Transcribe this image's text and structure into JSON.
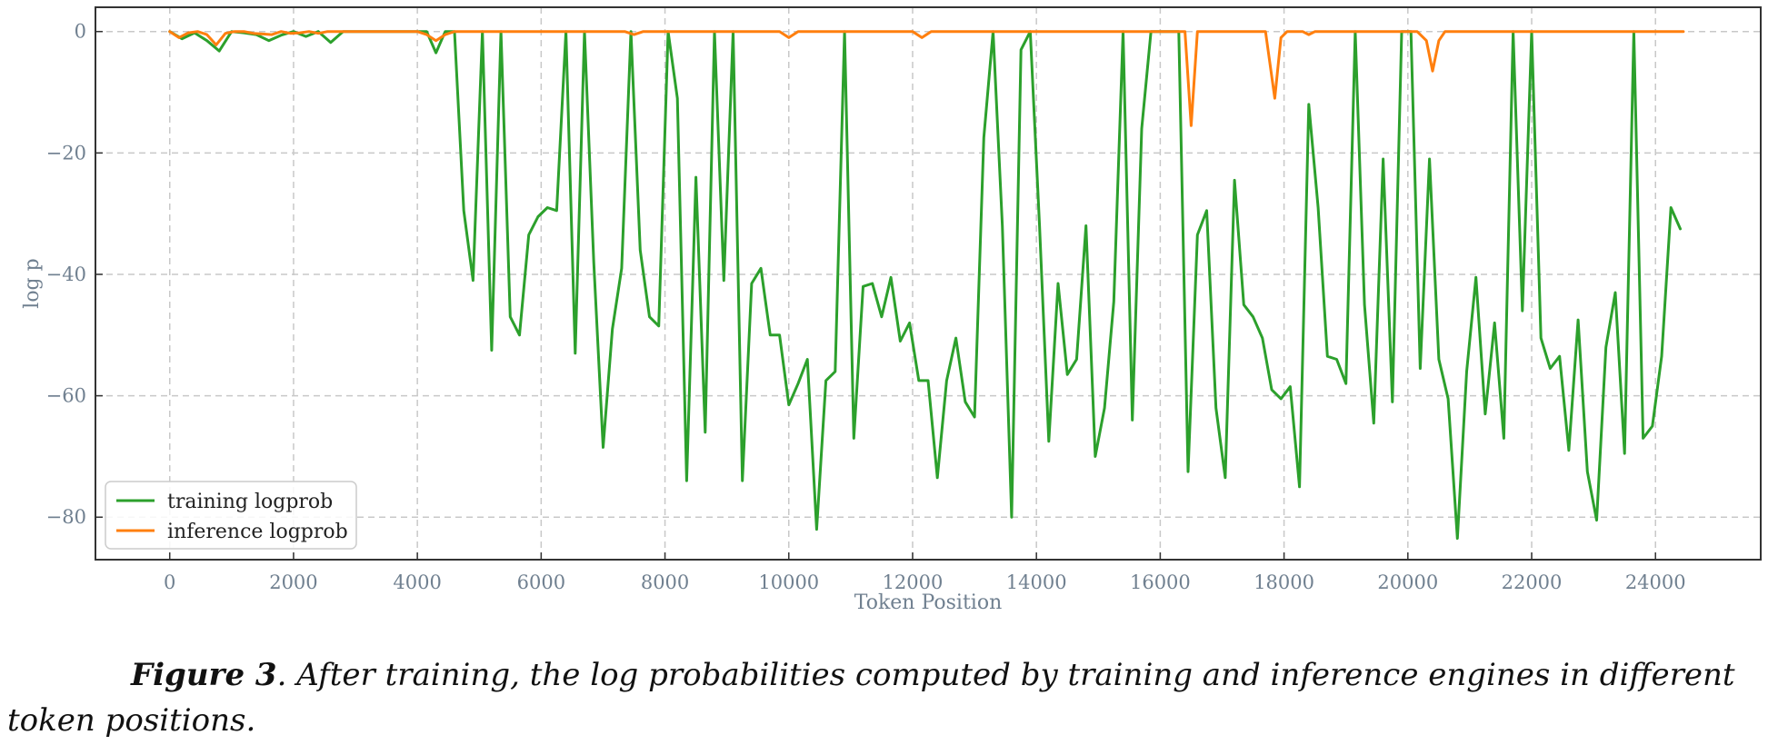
{
  "caption": {
    "figure_label": "Figure 3",
    "text": ". After training, the log probabilities computed by training and inference engines in different token positions."
  },
  "chart_data": {
    "type": "line",
    "xlabel": "Token Position",
    "ylabel": "log p",
    "xlim": [
      -1200,
      25700
    ],
    "ylim": [
      -87,
      4
    ],
    "xticks": [
      0,
      2000,
      4000,
      6000,
      8000,
      10000,
      12000,
      14000,
      16000,
      18000,
      20000,
      22000,
      24000
    ],
    "yticks": [
      0,
      -20,
      -40,
      -60,
      -80
    ],
    "grid": true,
    "legend_position": "lower-left",
    "series": [
      {
        "name": "training logprob",
        "color": "#2ca02c",
        "x": [
          0,
          200,
          400,
          600,
          800,
          1000,
          1200,
          1400,
          1600,
          1800,
          2000,
          2200,
          2400,
          2600,
          2800,
          3000,
          3200,
          3400,
          3600,
          3800,
          4000,
          4150,
          4300,
          4450,
          4600,
          4750,
          4900,
          5050,
          5200,
          5350,
          5500,
          5650,
          5800,
          5950,
          6100,
          6250,
          6400,
          6550,
          6700,
          6850,
          7000,
          7150,
          7300,
          7450,
          7600,
          7750,
          7900,
          8050,
          8200,
          8350,
          8500,
          8650,
          8800,
          8950,
          9100,
          9250,
          9400,
          9550,
          9700,
          9850,
          10000,
          10150,
          10300,
          10450,
          10600,
          10750,
          10900,
          11050,
          11200,
          11350,
          11500,
          11650,
          11800,
          11950,
          12100,
          12250,
          12400,
          12550,
          12700,
          12850,
          13000,
          13150,
          13300,
          13450,
          13600,
          13750,
          13900,
          14050,
          14200,
          14350,
          14500,
          14650,
          14800,
          14950,
          15100,
          15250,
          15400,
          15550,
          15700,
          15850,
          16000,
          16150,
          16300,
          16450,
          16600,
          16750,
          16900,
          17050,
          17200,
          17350,
          17500,
          17650,
          17800,
          17950,
          18100,
          18250,
          18400,
          18550,
          18700,
          18850,
          19000,
          19150,
          19300,
          19450,
          19600,
          19750,
          19900,
          20050,
          20200,
          20350,
          20500,
          20650,
          20800,
          20950,
          21100,
          21250,
          21400,
          21550,
          21700,
          21850,
          22000,
          22150,
          22300,
          22450,
          22600,
          22750,
          22900,
          23050,
          23200,
          23350,
          23500,
          23650,
          23800,
          23950,
          24100,
          24250,
          24400
        ],
        "y": [
          0,
          -1.2,
          -0.2,
          -1.5,
          -3.2,
          0,
          -0.2,
          -0.5,
          -1.5,
          -0.6,
          0,
          -0.8,
          0,
          -1.8,
          0,
          0,
          0,
          0,
          0,
          0,
          0,
          0,
          -3.5,
          0,
          0,
          -29.5,
          -41,
          0,
          -52.5,
          0,
          -47,
          -50,
          -33.5,
          -30.5,
          -29,
          -29.5,
          0,
          -53,
          0,
          -38,
          -68.5,
          -49,
          -39,
          0,
          -36,
          -47,
          -48.5,
          0,
          -11,
          -74,
          -24,
          -66,
          0,
          -41,
          0,
          -74,
          -41.5,
          -39,
          -50,
          -50,
          -61.5,
          -58,
          -54,
          -82,
          -57.5,
          -56,
          0,
          -67,
          -42,
          -41.5,
          -47,
          -40.5,
          -51,
          -48,
          -57.5,
          -57.5,
          -73.5,
          -57.5,
          -50.5,
          -61,
          -63.5,
          -17.5,
          0,
          -32,
          -80,
          -3,
          0,
          -32,
          -67.5,
          -41.5,
          -56.5,
          -54,
          -32,
          -70,
          -62,
          -44.5,
          0,
          -64,
          -16,
          0,
          0,
          0,
          0,
          -72.5,
          -33.5,
          -29.5,
          -62,
          -73.5,
          -24.5,
          -45,
          -47,
          -50.5,
          -59,
          -60.5,
          -58.5,
          -75,
          -12,
          -29,
          -53.5,
          -54,
          -58,
          0,
          -45,
          -64.5,
          -21,
          -61,
          0,
          0,
          -55.5,
          -21,
          -54,
          -60.5,
          -83.5,
          -56,
          -40.5,
          -63,
          -48,
          -67,
          0,
          -46,
          0,
          -50.5,
          -55.5,
          -53.5,
          -69,
          -47.5,
          -72.5,
          -80.5,
          -52,
          -43,
          -69.5,
          0,
          -67,
          -65,
          -53.5,
          -29,
          -32.5
        ]
      },
      {
        "name": "inference logprob",
        "color": "#ff7f0e",
        "x": [
          0,
          150,
          300,
          450,
          600,
          750,
          900,
          1050,
          1200,
          1350,
          1500,
          1650,
          1800,
          1950,
          2100,
          2250,
          2400,
          2550,
          2700,
          4000,
          4150,
          4300,
          4450,
          4600,
          7350,
          7500,
          7650,
          9850,
          10000,
          10150,
          12000,
          12150,
          12300,
          16400,
          16500,
          16600,
          16700,
          17700,
          17850,
          17950,
          18050,
          18300,
          18400,
          18500,
          20150,
          20300,
          20400,
          20500,
          20600,
          24450
        ],
        "y": [
          0,
          -1.0,
          -0.2,
          0,
          -0.5,
          -2.2,
          -0.3,
          0,
          0,
          -0.3,
          -0.4,
          -0.5,
          0,
          -0.3,
          -0.2,
          0,
          -0.3,
          0,
          0,
          0,
          -0.5,
          -1.5,
          -0.5,
          0,
          0,
          -0.5,
          0,
          0,
          -1.0,
          0,
          0,
          -1.0,
          0,
          0,
          -15.5,
          0,
          0,
          0,
          -11,
          -1,
          0,
          0,
          -0.5,
          0,
          0,
          -1.5,
          -6.5,
          -1.5,
          0,
          0
        ]
      }
    ]
  }
}
